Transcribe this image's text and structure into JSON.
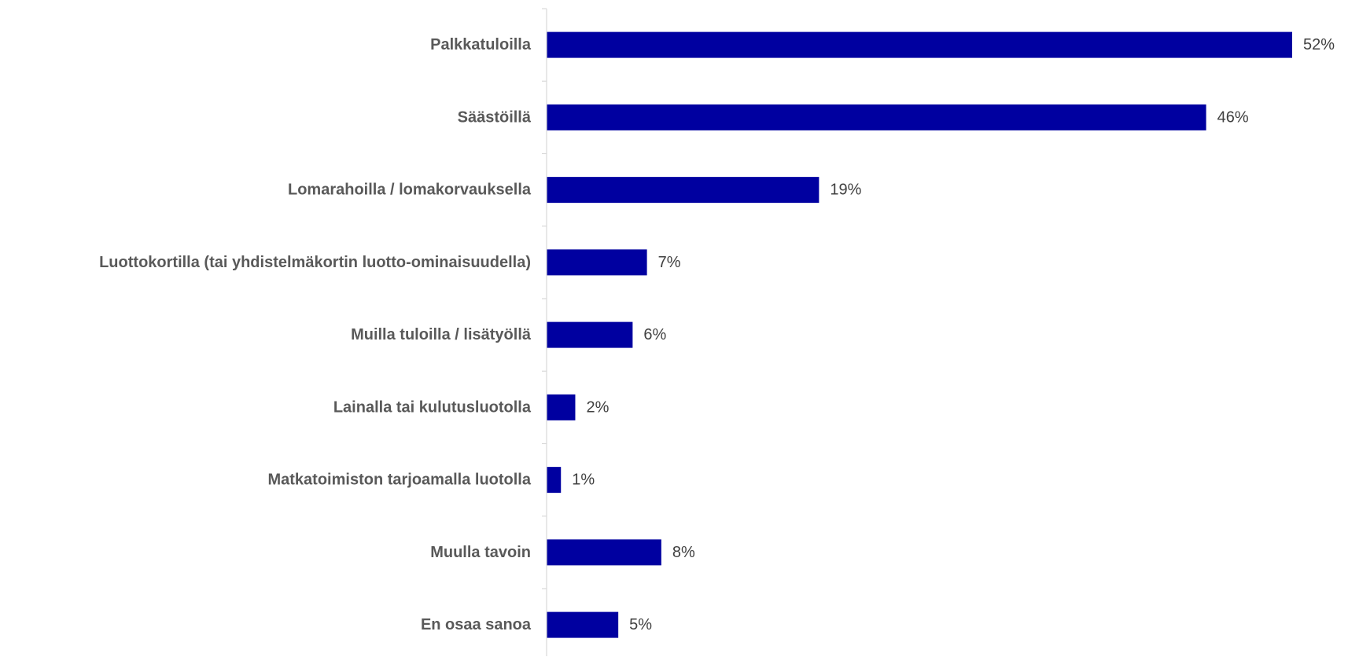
{
  "chart_data": {
    "type": "bar",
    "orientation": "horizontal",
    "categories": [
      "Palkkatuloilla",
      "Säästöillä",
      "Lomarahoilla / lomakorvauksella",
      "Luottokortilla (tai yhdistelmäkortin luotto-ominaisuudella)",
      "Muilla tuloilla / lisätyöllä",
      "Lainalla tai kulutusluotolla",
      "Matkatoimiston tarjoamalla luotolla",
      "Muulla tavoin",
      "En osaa sanoa"
    ],
    "values": [
      52,
      46,
      19,
      7,
      6,
      2,
      1,
      8,
      5
    ],
    "value_labels": [
      "52%",
      "46%",
      "19%",
      "7%",
      "6%",
      "2%",
      "1%",
      "8%",
      "5%"
    ],
    "unit": "%",
    "title": "",
    "xlabel": "",
    "ylabel": "",
    "xlim": [
      0,
      52
    ],
    "grid": false,
    "legend": "none",
    "colors": {
      "bar": "#0000a0",
      "category_text": "#595959",
      "value_text": "#404040",
      "axis": "#d9d9d9"
    }
  }
}
